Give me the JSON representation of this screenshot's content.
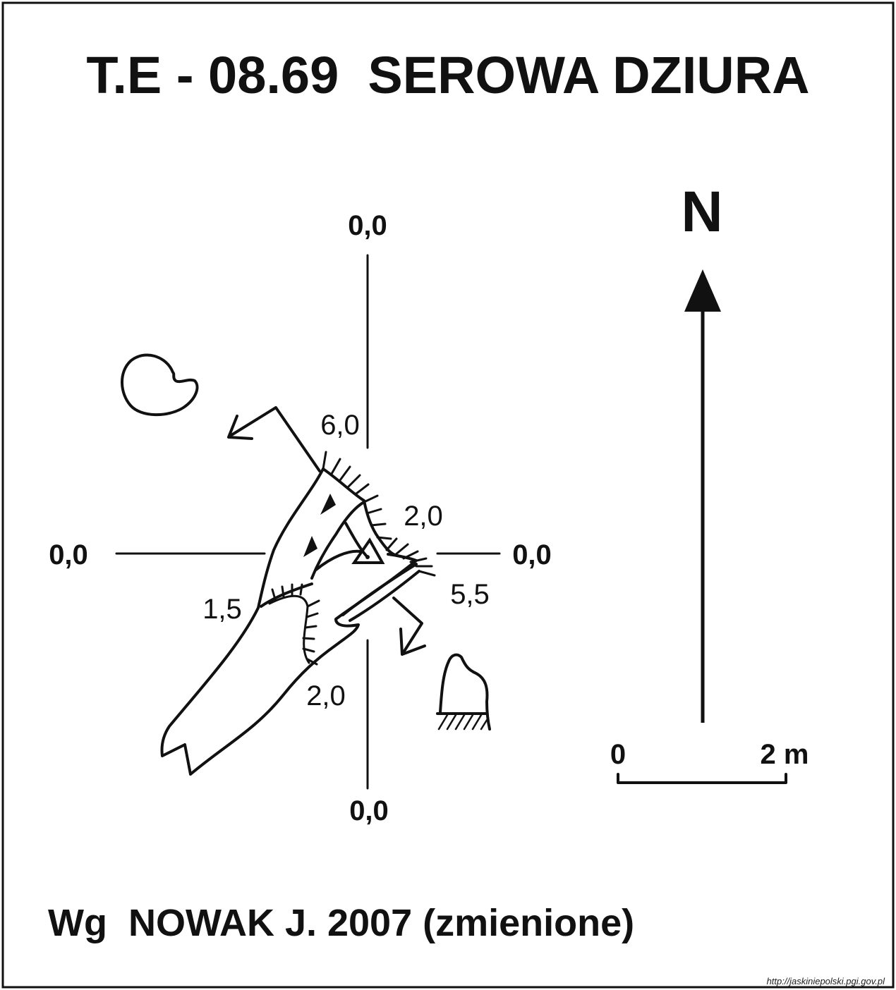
{
  "title": "T.E - 08.69  SEROWA DZIURA",
  "credit": "Wg  NOWAK J. 2007 (zmienione)",
  "source_url": "http://jaskiniepolski.pgi.gov.pl",
  "north_label": "N",
  "scale_bar": {
    "start_label": "0",
    "end_label": "2 m"
  },
  "axis_labels": {
    "top": "0,0",
    "left": "0,0",
    "right": "0,0",
    "bottom": "0,0"
  },
  "depth_labels": {
    "upper": "6,0",
    "middle_right": "2,0",
    "right": "5,5",
    "left": "1,5",
    "lower": "2,0"
  },
  "colors": {
    "ink": "#111111",
    "paper": "#ffffff"
  }
}
